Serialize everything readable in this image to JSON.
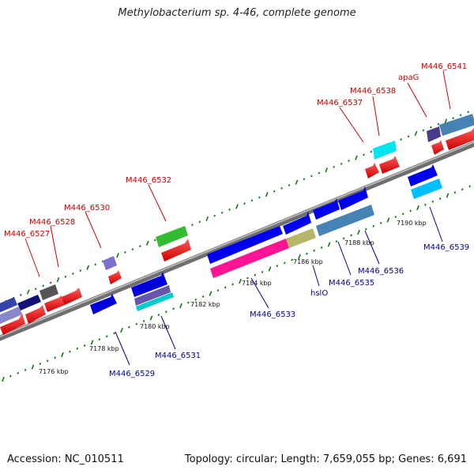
{
  "title": "Methylobacterium sp. 4-46, complete genome",
  "footer": {
    "accession": "Accession: NC_010511",
    "summary": "Topology: circular; Length: 7,659,055 bp; Genes: 6,691"
  },
  "colors": {
    "backbone": "#8a8a8a",
    "tick": "#117711",
    "top_label": "#cc0000",
    "bottom_label": "#000099"
  },
  "kbp_labels": [
    "7176 kbp",
    "7178 kbp",
    "7180 kbp",
    "7182 kbp",
    "7184 kbp",
    "7186 kbp",
    "7188 kbp",
    "7190 kbp"
  ],
  "top_labels": [
    "M446_6527",
    "M446_6528",
    "M446_6530",
    "M446_6532",
    "M446_6537",
    "M446_6538",
    "apaG",
    "M446_6541"
  ],
  "bottom_labels": [
    "M446_6529",
    "M446_6531",
    "M446_6533",
    "hslO",
    "M446_6535",
    "M446_6536",
    "M446_6539"
  ]
}
